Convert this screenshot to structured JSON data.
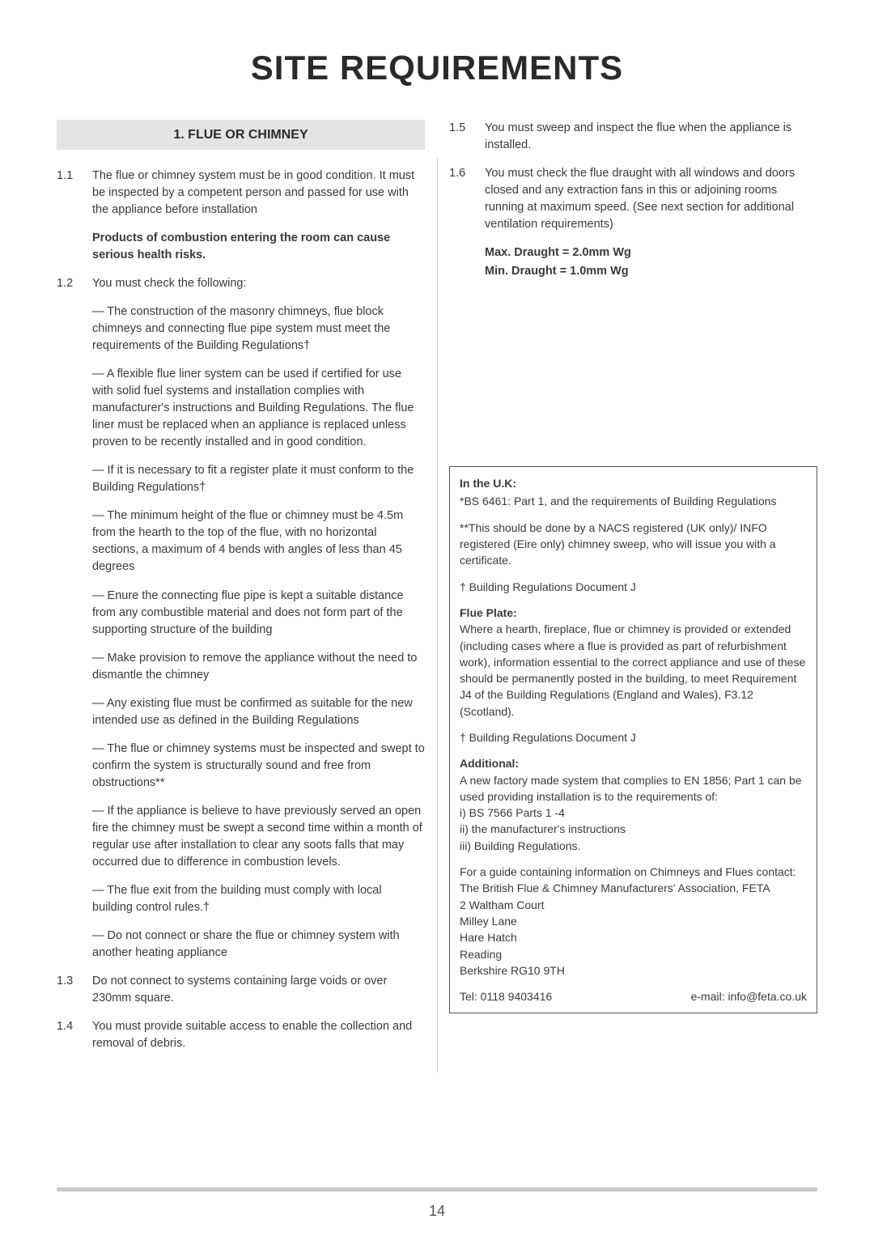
{
  "title": "SITE REQUIREMENTS",
  "pageNumber": "14",
  "sectionHead": "1. FLUE OR CHIMNEY",
  "left": {
    "p11": {
      "num": "1.1",
      "text": "The flue or chimney system must be in good condition. It must be inspected by a competent person and passed for use with the appliance before installation"
    },
    "warn": "Products of combustion entering the room can cause serious health risks.",
    "p12": {
      "num": "1.2",
      "text": "You must check the following:"
    },
    "b1": "— The construction of the masonry chimneys, flue block chimneys and connecting flue pipe system must meet the requirements of the Building Regulations†",
    "b2": "— A flexible flue liner system can be used if certified for use with solid fuel systems and installation complies with manufacturer's instructions and Building Regulations. The flue liner must be replaced when an appliance is replaced unless proven to be recently installed and in good condition.",
    "b3": "— If it is necessary to fit a register plate it must conform to the Building Regulations†",
    "b4": "— The minimum height of the flue or chimney must be 4.5m from the hearth to the top of the flue, with no horizontal sections, a maximum of 4 bends with angles of less than 45 degrees",
    "b5": "— Enure the connecting flue pipe is kept a suitable distance from any combustible material and does not form part of the supporting structure of the building",
    "b6": "— Make provision to remove the appliance without the need to dismantle the chimney",
    "b7": "— Any existing flue must be confirmed as suitable for the new intended use as defined in the Building Regulations",
    "b8": "— The flue or chimney systems must be inspected and swept to confirm the system is structurally sound and free from obstructions**",
    "b9": "— If the appliance is believe to have previously served an open fire the chimney must be swept a second time within a month of regular use after installation to clear any soots falls that may occurred due to difference in combustion levels.",
    "b10": "— The flue exit from the building must comply with local building control rules.†",
    "b11": "— Do not connect or share the flue or chimney system with another heating appliance",
    "p13": {
      "num": "1.3",
      "text": "Do not connect to systems containing large voids or over 230mm square."
    },
    "p14": {
      "num": "1.4",
      "text": "You must provide suitable access to enable the collection and removal of debris."
    }
  },
  "right": {
    "p15": {
      "num": "1.5",
      "text": "You must sweep and inspect the flue when the appliance is installed."
    },
    "p16": {
      "num": "1.6",
      "text": "You must check the flue draught with all windows and doors closed and any extraction fans in this or adjoining rooms running at maximum speed. (See next section for additional ventilation requirements)"
    },
    "draughtMax": "Max. Draught = 2.0mm Wg",
    "draughtMin": "Min. Draught = 1.0mm Wg"
  },
  "box": {
    "ukHead": "In the U.K:",
    "uk1": "*BS 6461: Part 1, and the requirements of Building Regulations",
    "uk2": "**This should be done by a NACS registered (UK only)/ INFO registered (Eire only) chimney sweep, who will issue you with a certificate.",
    "uk3": "† Building Regulations Document J",
    "fpHead": "Flue Plate:",
    "fp1": "Where a hearth, fireplace, flue or chimney is provided or extended (including cases where a flue is provided as part of refurbishment work), information essential to the correct appliance and use of these should be permanently posted in the building, to meet Requirement J4 of the Building Regulations (England and Wales), F3.12 (Scotland).",
    "fp2": "† Building Regulations Document J",
    "adHead": "Additional:",
    "ad1": "A new factory made system that complies to EN 1856; Part 1 can be used providing installation is to the requirements of:",
    "ad2": "i) BS 7566 Parts 1 -4",
    "ad3": "ii) the manufacturer's instructions",
    "ad4": "iii) Building Regulations.",
    "ad5": "For a guide containing information on Chimneys and Flues contact:",
    "ad6": "The British Flue & Chimney Manufacturers' Association, FETA",
    "ad7": "2 Waltham Court",
    "ad8": "Milley Lane",
    "ad9": "Hare Hatch",
    "ad10": "Reading",
    "ad11": "Berkshire RG10 9TH",
    "tel": "Tel: 0118 9403416",
    "email": "e-mail: info@feta.co.uk"
  }
}
